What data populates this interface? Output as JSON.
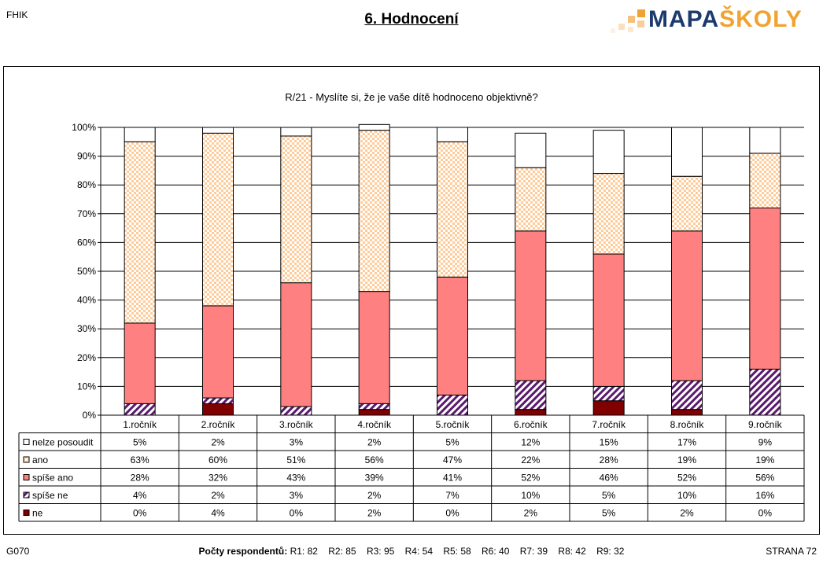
{
  "header": {
    "left_code": "FHIK",
    "title": "6. Hodnocení",
    "logo": {
      "part1": "MAPA",
      "part2": "ŠKOLY"
    }
  },
  "footer": {
    "left": "G070",
    "respondents_label": "Počty respondentů:",
    "respondents": "R1: 82    R2: 85    R3: 95    R4: 54    R5: 58    R6: 40    R7: 39    R8: 42    R9: 32",
    "page": "STRANA 72"
  },
  "colors": {
    "ne": "#800000",
    "spise_ne": "#5a1a6e",
    "spise_ano": "#ff8080",
    "ano": "#ffcc99",
    "nelze": "#ffffff",
    "logo_blue": "#1d3a6e",
    "logo_orange": "#f0a330"
  },
  "chart_data": {
    "type": "bar",
    "stacked": true,
    "title": "R/21 - Myslíte si, že je vaše dítě hodnoceno objektivně?",
    "categories": [
      "1.ročník",
      "2.ročník",
      "3.ročník",
      "4.ročník",
      "5.ročník",
      "6.ročník",
      "7.ročník",
      "8.ročník",
      "9.ročník"
    ],
    "ylim": [
      0,
      100
    ],
    "y_ticks": [
      "0%",
      "10%",
      "20%",
      "30%",
      "40%",
      "50%",
      "60%",
      "70%",
      "80%",
      "90%",
      "100%"
    ],
    "grid": true,
    "series": [
      {
        "name": "ne",
        "values": [
          0,
          4,
          0,
          2,
          0,
          2,
          5,
          2,
          0
        ],
        "labels": [
          "0%",
          "4%",
          "0%",
          "2%",
          "0%",
          "2%",
          "5%",
          "2%",
          "0%"
        ]
      },
      {
        "name": "spíše ne",
        "values": [
          4,
          2,
          3,
          2,
          7,
          10,
          5,
          10,
          16
        ],
        "labels": [
          "4%",
          "2%",
          "3%",
          "2%",
          "7%",
          "10%",
          "5%",
          "10%",
          "16%"
        ]
      },
      {
        "name": "spíše ano",
        "values": [
          28,
          32,
          43,
          39,
          41,
          52,
          46,
          52,
          56
        ],
        "labels": [
          "28%",
          "32%",
          "43%",
          "39%",
          "41%",
          "52%",
          "46%",
          "52%",
          "56%"
        ]
      },
      {
        "name": "ano",
        "values": [
          63,
          60,
          51,
          56,
          47,
          22,
          28,
          19,
          19
        ],
        "labels": [
          "63%",
          "60%",
          "51%",
          "56%",
          "47%",
          "22%",
          "28%",
          "19%",
          "19%"
        ]
      },
      {
        "name": "nelze posoudit",
        "values": [
          5,
          2,
          3,
          2,
          5,
          12,
          15,
          17,
          9
        ],
        "labels": [
          "5%",
          "2%",
          "3%",
          "2%",
          "5%",
          "12%",
          "15%",
          "17%",
          "9%"
        ]
      }
    ],
    "table_row_order": [
      "nelze posoudit",
      "ano",
      "spíše ano",
      "spíše ne",
      "ne"
    ]
  }
}
